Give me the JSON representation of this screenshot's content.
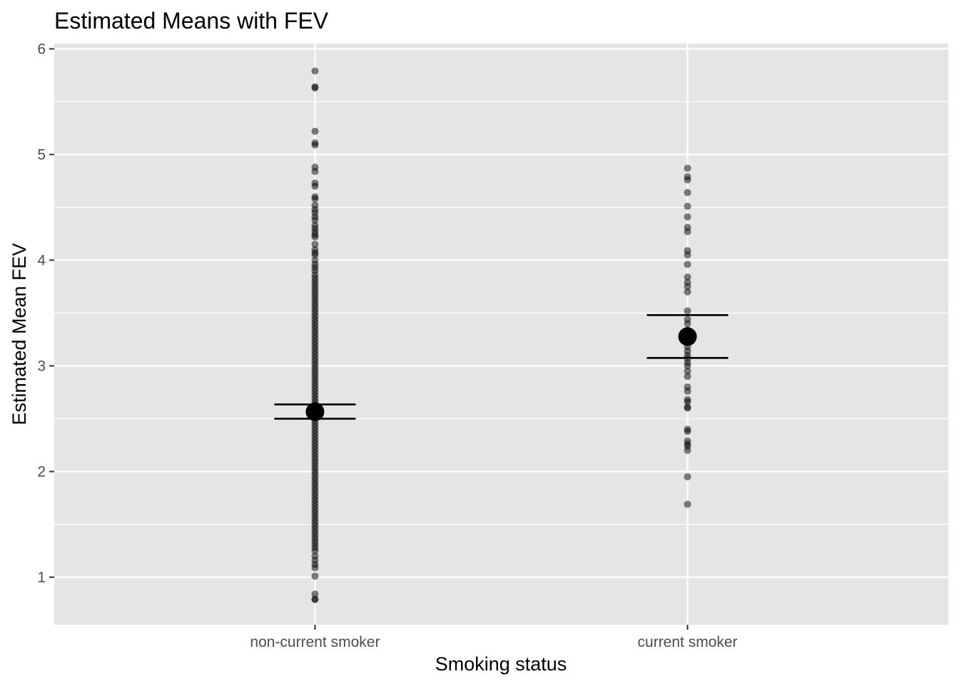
{
  "chart_data": {
    "type": "scatter",
    "title": "Estimated Means with FEV",
    "xlabel": "Smoking status",
    "ylabel": "Estimated Mean FEV",
    "categories": [
      "non-current smoker",
      "current smoker"
    ],
    "ylim": [
      0.55,
      6.05
    ],
    "yticks": [
      "1",
      "2",
      "3",
      "4",
      "5",
      "6"
    ],
    "grid": true,
    "panel_background": "#e5e5e5",
    "grid_color": "#ffffff",
    "point_color": "#000000",
    "point_alpha": 0.5,
    "series": [
      {
        "values": [
          5.79,
          5.64,
          5.63,
          5.22,
          5.11,
          5.09,
          4.88,
          4.84,
          4.73,
          4.7,
          4.6,
          4.58,
          4.52,
          4.48,
          4.45,
          4.41,
          4.38,
          4.33,
          4.3,
          4.27,
          4.24,
          4.22,
          4.15,
          4.1,
          4.07,
          4.05,
          4.0,
          3.96,
          3.93,
          3.9,
          3.86,
          3.83,
          3.8,
          3.77,
          3.74,
          3.71,
          3.68,
          3.65,
          3.62,
          3.59,
          3.56,
          3.53,
          3.5,
          3.47,
          3.44,
          3.41,
          3.38,
          3.35,
          3.32,
          3.29,
          3.26,
          3.23,
          3.2,
          3.17,
          3.14,
          3.11,
          3.08,
          3.05,
          3.02,
          2.99,
          2.96,
          2.93,
          2.9,
          2.87,
          2.84,
          2.81,
          2.78,
          2.75,
          2.72,
          2.69,
          2.66,
          2.63,
          2.6,
          2.57,
          2.54,
          2.51,
          2.48,
          2.45,
          2.42,
          2.39,
          2.36,
          2.33,
          2.3,
          2.27,
          2.24,
          2.21,
          2.18,
          2.15,
          2.12,
          2.09,
          2.06,
          2.03,
          2.0,
          1.97,
          1.94,
          1.91,
          1.88,
          1.85,
          1.82,
          1.79,
          1.76,
          1.73,
          1.7,
          1.67,
          1.64,
          1.61,
          1.58,
          1.55,
          1.52,
          1.49,
          1.46,
          1.43,
          1.4,
          1.37,
          1.34,
          1.31,
          1.28,
          1.25,
          1.2,
          1.16,
          1.12,
          1.09,
          1.01,
          0.84,
          0.79,
          0.79
        ],
        "mean": 2.566,
        "ci": [
          2.5,
          2.635
        ]
      },
      {
        "values": [
          4.87,
          4.79,
          4.76,
          4.64,
          4.51,
          4.41,
          4.31,
          4.27,
          4.09,
          4.05,
          3.96,
          3.84,
          3.79,
          3.75,
          3.7,
          3.52,
          3.44,
          3.4,
          3.34,
          3.3,
          3.26,
          3.22,
          3.18,
          3.14,
          3.1,
          3.07,
          3.03,
          3.0,
          2.95,
          2.9,
          2.8,
          2.76,
          2.68,
          2.66,
          2.61,
          2.6,
          2.4,
          2.38,
          2.29,
          2.26,
          2.24,
          2.2,
          1.95,
          1.69
        ],
        "mean": 3.277,
        "ci": [
          3.075,
          3.48
        ]
      }
    ]
  }
}
